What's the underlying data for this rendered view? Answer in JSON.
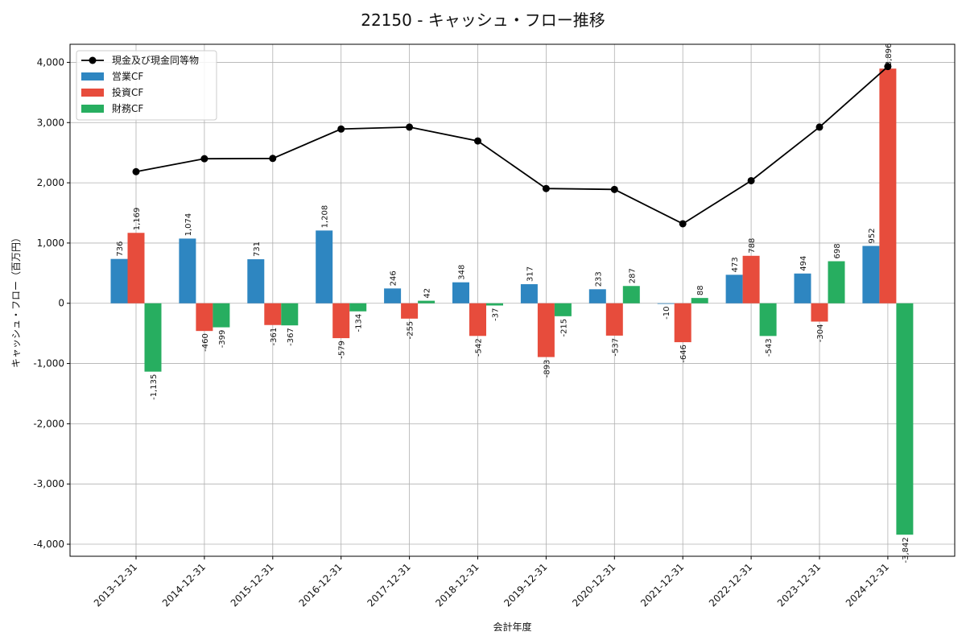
{
  "chart_data": {
    "type": "bar",
    "title": "22150 - キャッシュ・フロー推移",
    "xlabel": "会計年度",
    "ylabel": "キャッシュ・フロー（百万円）",
    "categories": [
      "2013-12-31",
      "2014-12-31",
      "2015-12-31",
      "2016-12-31",
      "2017-12-31",
      "2018-12-31",
      "2019-12-31",
      "2020-12-31",
      "2021-12-31",
      "2022-12-31",
      "2023-12-31",
      "2024-12-31"
    ],
    "ylim": [
      -4200,
      4300
    ],
    "yticks": [
      -4000,
      -3000,
      -2000,
      -1000,
      0,
      1000,
      2000,
      3000,
      4000
    ],
    "ytick_labels": [
      "-4,000",
      "-3,000",
      "-2,000",
      "-1,000",
      "0",
      "1,000",
      "2,000",
      "3,000",
      "4,000"
    ],
    "grid": true,
    "legend_position": "top-left",
    "series": [
      {
        "name": "営業CF",
        "kind": "bar",
        "color": "#2e86c1",
        "values": [
          736,
          1074,
          731,
          1208,
          246,
          348,
          317,
          233,
          -10,
          473,
          494,
          952
        ],
        "labels": [
          "736",
          "1,074",
          "731",
          "1,208",
          "246",
          "348",
          "317",
          "233",
          "-10",
          "473",
          "494",
          "952"
        ]
      },
      {
        "name": "投資CF",
        "kind": "bar",
        "color": "#e74c3c",
        "values": [
          1169,
          -460,
          -361,
          -579,
          -255,
          -542,
          -893,
          -537,
          -646,
          788,
          -304,
          3896
        ],
        "labels": [
          "1,169",
          "-460",
          "-361",
          "-579",
          "-255",
          "-542",
          "-893",
          "-537",
          "-646",
          "788",
          "-304",
          "3,896"
        ]
      },
      {
        "name": "財務CF",
        "kind": "bar",
        "color": "#27ae60",
        "values": [
          -1135,
          -399,
          -367,
          -134,
          42,
          -37,
          -215,
          287,
          88,
          -543,
          698,
          -3842
        ],
        "labels": [
          "-1,135",
          "-399",
          "-367",
          "-134",
          "42",
          "-37",
          "-215",
          "287",
          "88",
          "-543",
          "698",
          "-3,842"
        ]
      }
    ],
    "line_series": {
      "name": "現金及び現金同等物",
      "kind": "line",
      "color": "#000000",
      "values": [
        2185,
        2400,
        2405,
        2893,
        2925,
        2695,
        1905,
        1890,
        1320,
        2035,
        2925,
        3930
      ]
    }
  }
}
